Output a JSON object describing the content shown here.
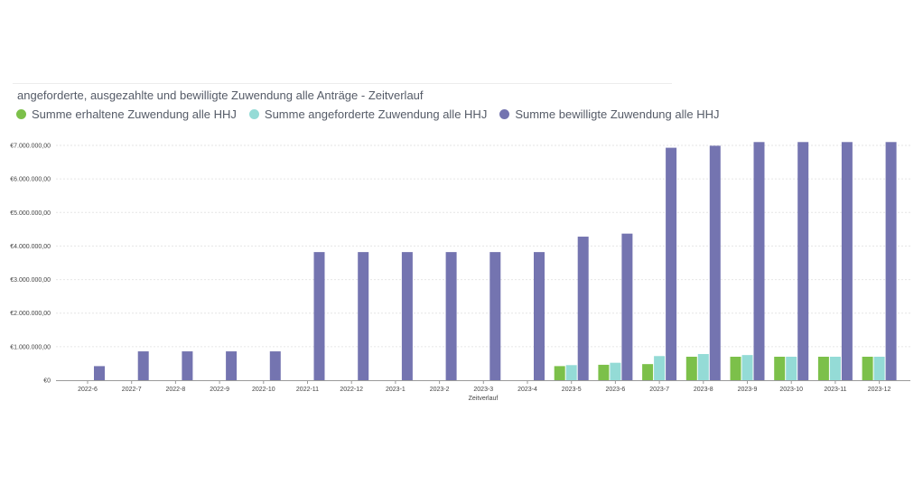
{
  "title": "angeforderte, ausgezahlte und bewilligte Zuwendung alle Anträge - Zeitverlauf",
  "legend": [
    {
      "label": "Summe erhaltene Zuwendung alle HHJ",
      "color": "#7cc04a"
    },
    {
      "label": "Summe angeforderte Zuwendung alle HHJ",
      "color": "#94dbd6"
    },
    {
      "label": "Summe bewilligte Zuwendung alle HHJ",
      "color": "#7474b0"
    }
  ],
  "chart_data": {
    "type": "bar",
    "title": "angeforderte, ausgezahlte und bewilligte Zuwendung alle Anträge - Zeitverlauf",
    "xlabel": "Zeitverlauf",
    "ylabel": "",
    "ylim": [
      0,
      7000000
    ],
    "yticks": [
      0,
      1000000,
      2000000,
      3000000,
      4000000,
      5000000,
      6000000,
      7000000
    ],
    "ytick_labels": [
      "€0",
      "€1.000.000,00",
      "€2.000.000,00",
      "€3.000.000,00",
      "€4.000.000,00",
      "€5.000.000,00",
      "€6.000.000,00",
      "€7.000.000,00"
    ],
    "categories": [
      "2022-6",
      "2022-7",
      "2022-8",
      "2022-9",
      "2022-10",
      "2022-11",
      "2022-12",
      "2023-1",
      "2023-2",
      "2023-3",
      "2023-4",
      "2023-5",
      "2023-6",
      "2023-7",
      "2023-8",
      "2023-9",
      "2023-10",
      "2023-11",
      "2023-12"
    ],
    "series": [
      {
        "name": "Summe erhaltene Zuwendung alle HHJ",
        "color": "#7cc04a",
        "values": [
          0,
          0,
          0,
          0,
          0,
          0,
          0,
          0,
          0,
          0,
          0,
          420000,
          460000,
          480000,
          700000,
          700000,
          700000,
          700000,
          700000
        ]
      },
      {
        "name": "Summe angeforderte Zuwendung alle HHJ",
        "color": "#94dbd6",
        "values": [
          0,
          0,
          0,
          0,
          0,
          0,
          0,
          0,
          0,
          0,
          0,
          450000,
          520000,
          720000,
          780000,
          750000,
          700000,
          700000,
          700000
        ]
      },
      {
        "name": "Summe bewilligte Zuwendung alle HHJ",
        "color": "#7474b0",
        "values": [
          420000,
          860000,
          860000,
          860000,
          860000,
          3820000,
          3820000,
          3820000,
          3820000,
          3820000,
          3820000,
          4280000,
          4370000,
          6930000,
          6990000,
          7100000,
          7100000,
          7100000,
          7100000
        ]
      }
    ]
  }
}
